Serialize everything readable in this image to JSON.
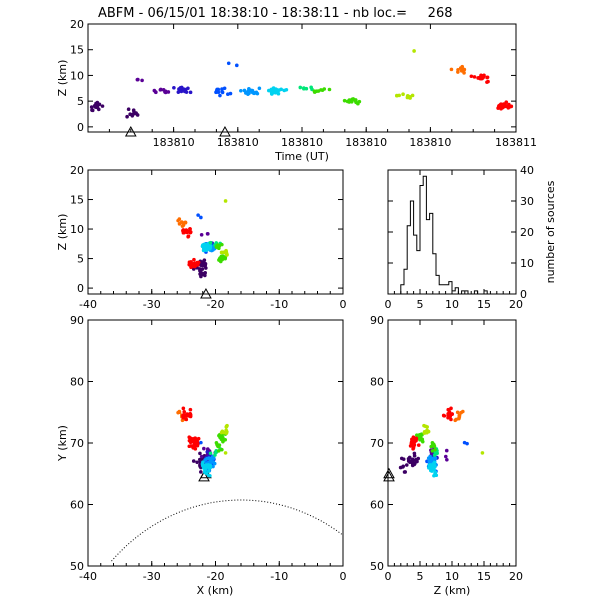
{
  "figure": {
    "title": "ABFM - 06/15/01 18:38:10 - 18:38:11 - nb loc.=     268"
  },
  "chart_data": [
    {
      "type": "scatter",
      "panel": "time-height",
      "xlabel": "Time (UT)",
      "ylabel": "Z (km)",
      "xlim": [
        0,
        1
      ],
      "ylim": [
        -1,
        20
      ],
      "xtick_labels": [
        "183810",
        "183810",
        "183810",
        "183810",
        "183810",
        "183811"
      ],
      "xtick_values": [
        0.2,
        0.35,
        0.5,
        0.65,
        0.8,
        1.0
      ],
      "yticks": [
        0,
        5,
        10,
        15,
        20
      ],
      "station_markers_x": [
        0.1,
        0.32
      ],
      "colors": [
        "#3c0064",
        "#5a0096",
        "#2814c8",
        "#0050ff",
        "#0096ff",
        "#00d2f0",
        "#00e678",
        "#3cdc00",
        "#b4e600",
        "#ffc800",
        "#ff6e00",
        "#ff0000"
      ]
    },
    {
      "type": "scatter",
      "panel": "x-z",
      "xlabel": "",
      "ylabel": "Z (km)",
      "xlim": [
        -40,
        0
      ],
      "ylim": [
        -1,
        20
      ],
      "xticks": [
        -40,
        -30,
        -20,
        -10,
        0
      ],
      "yticks": [
        0,
        5,
        10,
        15,
        20
      ],
      "station_markers_x": [
        -21.5
      ]
    },
    {
      "type": "bar",
      "panel": "altitude-histogram",
      "xlabel": "",
      "ylabel": "number of sources",
      "xlim": [
        0,
        20
      ],
      "ylim": [
        0,
        40
      ],
      "xticks": [
        0,
        5,
        10,
        15,
        20
      ],
      "yticks": [
        0,
        10,
        20,
        30,
        40
      ],
      "bins": [
        2.0,
        2.5,
        3.0,
        3.5,
        4.0,
        4.5,
        5.0,
        5.5,
        6.0,
        6.5,
        7.0,
        7.5,
        8.0,
        8.5,
        9.0,
        9.5,
        10.0,
        10.5,
        11.0,
        11.5,
        12.0,
        12.5,
        13.0,
        13.5,
        14.0,
        14.5,
        15.0,
        15.5
      ],
      "values": [
        3,
        8,
        22,
        30,
        19,
        14,
        35,
        38,
        24,
        26,
        13,
        6,
        3,
        3,
        3,
        4,
        1,
        2,
        0,
        1,
        1,
        0,
        0,
        1,
        0,
        0,
        1,
        0
      ]
    },
    {
      "type": "scatter",
      "panel": "plan-view",
      "xlabel": "X (km)",
      "ylabel": "Y (km)",
      "xlim": [
        -40,
        0
      ],
      "ylim": [
        50,
        90
      ],
      "xticks": [
        -40,
        -30,
        -20,
        -10,
        0
      ],
      "yticks": [
        50,
        60,
        70,
        80,
        90
      ],
      "station_markers": [
        [
          -21.5,
          65.0
        ],
        [
          -21.8,
          64.5
        ]
      ],
      "range_rings": true
    },
    {
      "type": "scatter",
      "panel": "z-y",
      "xlabel": "Z (km)",
      "ylabel": "",
      "xlim": [
        0,
        20
      ],
      "ylim": [
        50,
        90
      ],
      "xticks": [
        0,
        5,
        10,
        15,
        20
      ],
      "yticks": [
        50,
        60,
        70,
        80,
        90
      ],
      "station_markers_y": [
        65.0,
        64.5
      ]
    }
  ]
}
